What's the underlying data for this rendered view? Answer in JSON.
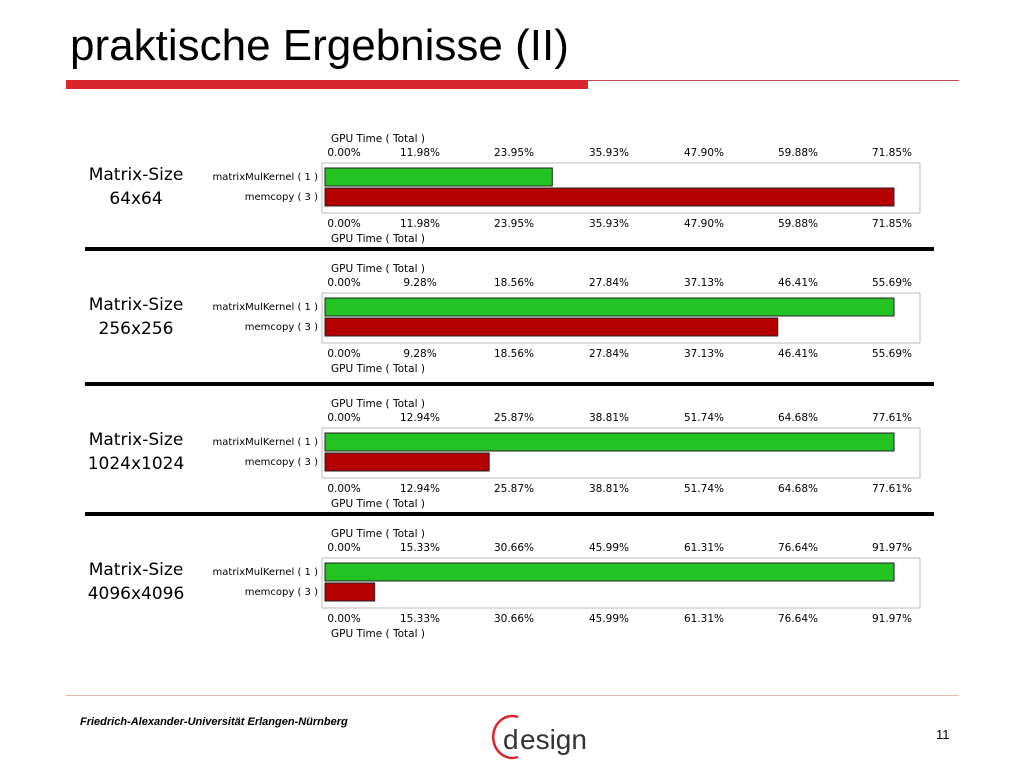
{
  "slide": {
    "title": "praktische Ergebnisse (II)",
    "footer": "Friedrich-Alexander-Universität Erlangen-Nürnberg",
    "page_number": "11",
    "logo_text": "esign",
    "logo_letter": "d",
    "colors": {
      "accent": "#d9262c",
      "kernel_bar": "#22c322",
      "memcopy_bar": "#b40000"
    }
  },
  "chart_data": [
    {
      "type": "bar",
      "label_lines": [
        "Matrix-Size",
        "64x64"
      ],
      "axis_title": "GPU Time ( Total )",
      "ticks": [
        "0.00%",
        "11.98%",
        "23.95%",
        "35.93%",
        "47.90%",
        "59.88%",
        "71.85%"
      ],
      "xlim": [
        0,
        71.85
      ],
      "categories": [
        "matrixMulKernel ( 1 )",
        "memcopy ( 3 )"
      ],
      "values": [
        28.7,
        71.85
      ]
    },
    {
      "type": "bar",
      "label_lines": [
        "Matrix-Size",
        "256x256"
      ],
      "axis_title": "GPU Time ( Total )",
      "ticks": [
        "0.00%",
        "9.28%",
        "18.56%",
        "27.84%",
        "37.13%",
        "46.41%",
        "55.69%"
      ],
      "xlim": [
        0,
        55.69
      ],
      "categories": [
        "matrixMulKernel ( 1 )",
        "memcopy ( 3 )"
      ],
      "values": [
        55.69,
        44.31
      ]
    },
    {
      "type": "bar",
      "label_lines": [
        "Matrix-Size",
        "1024x1024"
      ],
      "axis_title": "GPU Time ( Total )",
      "ticks": [
        "0.00%",
        "12.94%",
        "25.87%",
        "38.81%",
        "51.74%",
        "64.68%",
        "77.61%"
      ],
      "xlim": [
        0,
        77.61
      ],
      "categories": [
        "matrixMulKernel ( 1 )",
        "memcopy ( 3 )"
      ],
      "values": [
        77.61,
        22.39
      ]
    },
    {
      "type": "bar",
      "label_lines": [
        "Matrix-Size",
        "4096x4096"
      ],
      "axis_title": "GPU Time ( Total )",
      "ticks": [
        "0.00%",
        "15.33%",
        "30.66%",
        "45.99%",
        "61.31%",
        "76.64%",
        "91.97%"
      ],
      "xlim": [
        0,
        91.97
      ],
      "categories": [
        "matrixMulKernel ( 1 )",
        "memcopy ( 3 )"
      ],
      "values": [
        91.97,
        8.03
      ]
    }
  ]
}
